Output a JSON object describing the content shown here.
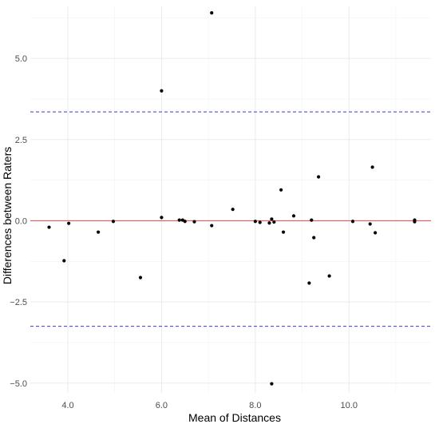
{
  "chart_data": {
    "type": "scatter",
    "xlabel": "Mean of Distances",
    "ylabel": "Differences between Raters",
    "xlim": [
      3.2,
      11.75
    ],
    "ylim": [
      -5.3,
      6.6
    ],
    "x_ticks": [
      4.0,
      6.0,
      8.0,
      10.0
    ],
    "x_tick_labels": [
      "4.0",
      "6.0",
      "8.0",
      "10.0"
    ],
    "y_ticks": [
      -5.0,
      -2.5,
      0.0,
      2.5,
      5.0
    ],
    "y_tick_labels": [
      "−5.0",
      "−2.5",
      "0.0",
      "2.5",
      "5.0"
    ],
    "grid": true,
    "reference_lines": [
      {
        "role": "mean",
        "y": 0.0,
        "color": "#e8474a",
        "style": "solid"
      },
      {
        "role": "upper-limit",
        "y": 3.35,
        "color": "#3a3ad0",
        "style": "dashed"
      },
      {
        "role": "lower-limit",
        "y": -3.25,
        "color": "#3a3ad0",
        "style": "dashed"
      }
    ],
    "point_color": "#000000",
    "points": [
      {
        "x": 3.6,
        "y": -0.2
      },
      {
        "x": 3.92,
        "y": -1.23
      },
      {
        "x": 4.02,
        "y": -0.08
      },
      {
        "x": 4.65,
        "y": -0.35
      },
      {
        "x": 4.97,
        "y": -0.02
      },
      {
        "x": 5.55,
        "y": -1.75
      },
      {
        "x": 6.0,
        "y": 4.0
      },
      {
        "x": 6.0,
        "y": 0.1
      },
      {
        "x": 6.38,
        "y": 0.02
      },
      {
        "x": 6.45,
        "y": 0.02
      },
      {
        "x": 6.5,
        "y": -0.02
      },
      {
        "x": 6.7,
        "y": -0.03
      },
      {
        "x": 7.07,
        "y": 6.4
      },
      {
        "x": 7.07,
        "y": -0.15
      },
      {
        "x": 7.52,
        "y": 0.35
      },
      {
        "x": 8.0,
        "y": -0.02
      },
      {
        "x": 8.1,
        "y": -0.05
      },
      {
        "x": 8.3,
        "y": -0.07
      },
      {
        "x": 8.35,
        "y": 0.05
      },
      {
        "x": 8.4,
        "y": -0.04
      },
      {
        "x": 8.35,
        "y": -5.02
      },
      {
        "x": 8.55,
        "y": 0.95
      },
      {
        "x": 8.6,
        "y": -0.35
      },
      {
        "x": 8.82,
        "y": 0.15
      },
      {
        "x": 9.15,
        "y": -1.92
      },
      {
        "x": 9.2,
        "y": 0.02
      },
      {
        "x": 9.25,
        "y": -0.52
      },
      {
        "x": 9.35,
        "y": 1.35
      },
      {
        "x": 9.58,
        "y": -1.7
      },
      {
        "x": 10.08,
        "y": -0.02
      },
      {
        "x": 10.45,
        "y": -0.1
      },
      {
        "x": 10.5,
        "y": 1.65
      },
      {
        "x": 10.56,
        "y": -0.37
      },
      {
        "x": 11.4,
        "y": 0.02
      },
      {
        "x": 11.4,
        "y": -0.03
      }
    ]
  }
}
